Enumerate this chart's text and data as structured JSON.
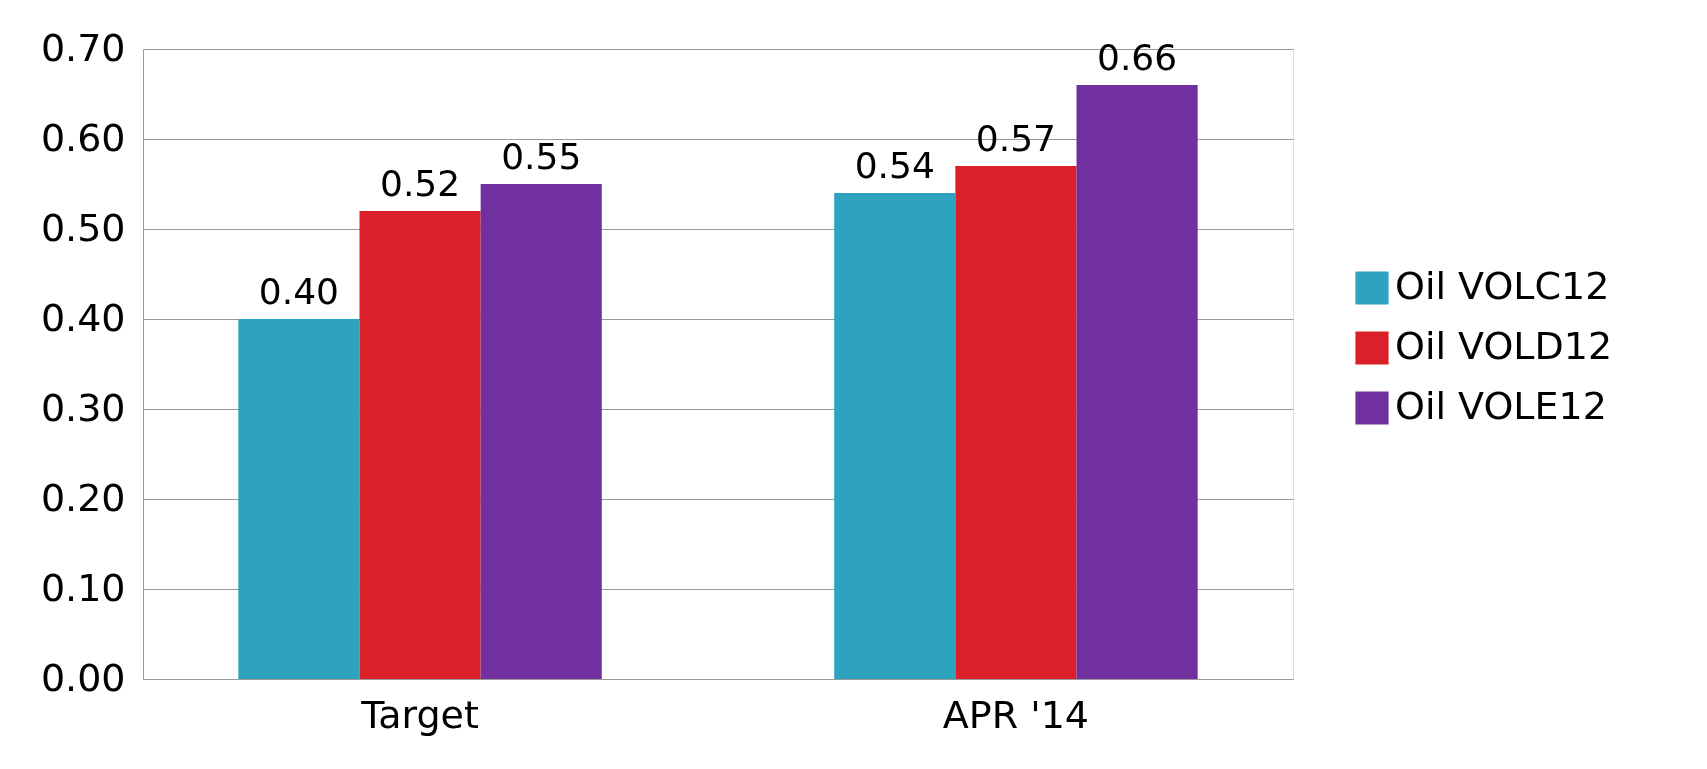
{
  "chart_data": {
    "type": "bar",
    "categories": [
      "Target",
      "APR '14"
    ],
    "series": [
      {
        "name": "Oil VOLC12",
        "color": "#2ea3bf",
        "values": [
          0.4,
          0.54
        ],
        "value_labels": [
          "0.40",
          "0.54"
        ]
      },
      {
        "name": "Oil VOLD12",
        "color": "#db2029",
        "values": [
          0.52,
          0.57
        ],
        "value_labels": [
          "0.52",
          "0.57"
        ]
      },
      {
        "name": "Oil VOLE12",
        "color": "#7030a0",
        "values": [
          0.55,
          0.66
        ],
        "value_labels": [
          "0.55",
          "0.66"
        ]
      }
    ],
    "ylim": [
      0,
      0.7
    ],
    "yticks": [
      {
        "value": 0,
        "label": "0.00"
      },
      {
        "value": 0.1,
        "label": "0.10"
      },
      {
        "value": 0.2,
        "label": "0.20"
      },
      {
        "value": 0.3,
        "label": "0.30"
      },
      {
        "value": 0.4,
        "label": "0.40"
      },
      {
        "value": 0.5,
        "label": "0.50"
      },
      {
        "value": 0.6,
        "label": "0.60"
      },
      {
        "value": 0.7,
        "label": "0.70"
      }
    ],
    "grid": "y",
    "legend": "right"
  }
}
